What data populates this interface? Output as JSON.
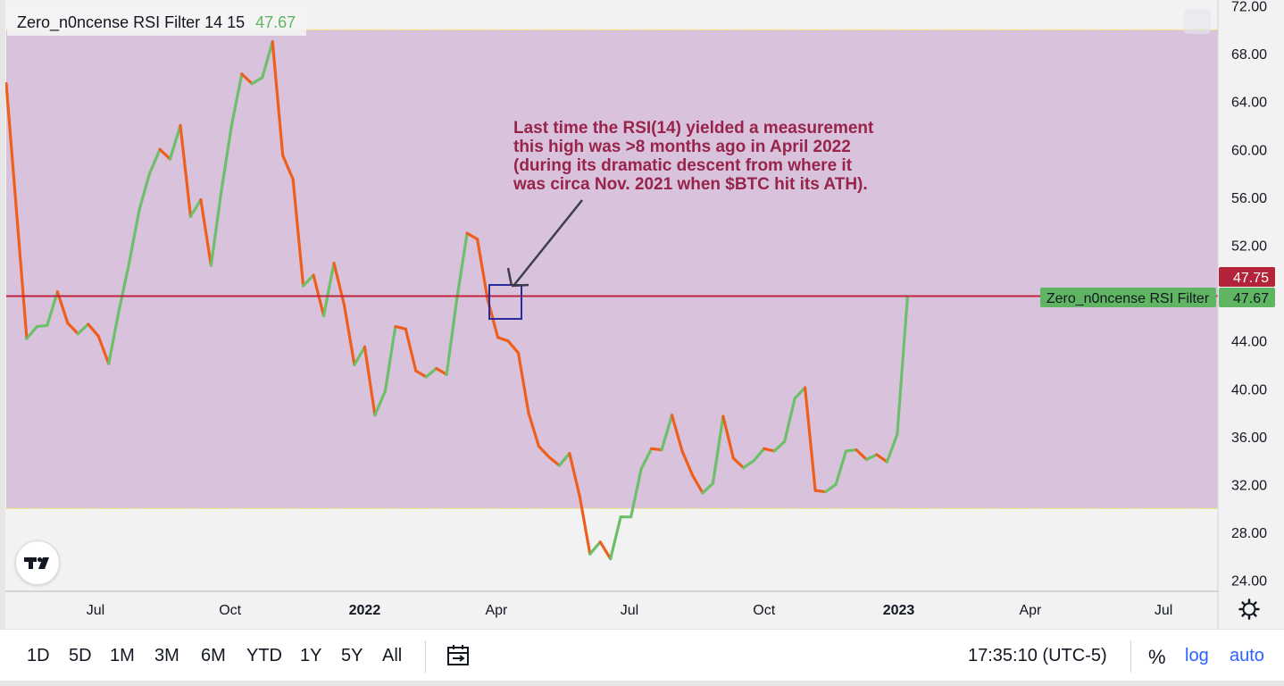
{
  "legend": {
    "name": "Zero_n0ncense RSI Filter 14 15",
    "value": "47.67"
  },
  "price_axis": {
    "ticks": [
      "72.00",
      "68.00",
      "64.00",
      "60.00",
      "56.00",
      "52.00",
      "48.00",
      "44.00",
      "40.00",
      "36.00",
      "32.00",
      "28.00",
      "24.00"
    ],
    "crosshair_label": "47.75",
    "last_value_label": "47.67",
    "series_tag": "Zero_n0ncense RSI Filter"
  },
  "time_axis": {
    "labels": [
      "Jul",
      "Oct",
      "2022",
      "Apr",
      "Jul",
      "Oct",
      "2023",
      "Apr",
      "Jul"
    ]
  },
  "annotation": {
    "lines": [
      "Last time the RSI(14) yielded a measurement",
      "this high was >8 months ago in April 2022",
      "(during its dramatic descent from where it",
      "was circa Nov. 2021 when $BTC hit its ATH)."
    ]
  },
  "toolbar": {
    "ranges": [
      "1D",
      "5D",
      "1M",
      "3M",
      "6M",
      "YTD",
      "1Y",
      "5Y",
      "All"
    ],
    "time": "17:35:10 (UTC-5)",
    "percent": "%",
    "log": "log",
    "auto": "auto"
  },
  "colors": {
    "band": "#d9c2dc",
    "up": "#6dbf6a",
    "down": "#ef5f1c",
    "level_line": "#c1243f",
    "annotation_text": "#98244c",
    "band_border": "#f2ea4a",
    "highlight_box": "#2a2b9e"
  },
  "icons": [
    "tradingview-logo-icon",
    "calendar-icon",
    "gear-icon"
  ],
  "chart_data": {
    "type": "line",
    "title": "Zero_n0ncense RSI Filter 14 15",
    "ylim": [
      24,
      72
    ],
    "band": [
      30,
      70
    ],
    "level_line": 47.75,
    "last_value": 47.67,
    "series": [
      {
        "name": "Zero_n0ncense RSI Filter",
        "x": [
          "2021-05-01",
          "2021-05-15",
          "2021-05-22",
          "2021-05-29",
          "2021-06-05",
          "2021-06-12",
          "2021-06-19",
          "2021-06-26",
          "2021-07-03",
          "2021-07-10",
          "2021-07-17",
          "2021-07-24",
          "2021-07-31",
          "2021-08-07",
          "2021-08-14",
          "2021-08-21",
          "2021-08-28",
          "2021-09-04",
          "2021-09-11",
          "2021-09-18",
          "2021-09-25",
          "2021-10-02",
          "2021-10-09",
          "2021-10-16",
          "2021-10-23",
          "2021-10-30",
          "2021-11-06",
          "2021-11-13",
          "2021-11-20",
          "2021-11-27",
          "2021-12-04",
          "2021-12-11",
          "2021-12-18",
          "2021-12-25",
          "2022-01-01",
          "2022-01-08",
          "2022-01-15",
          "2022-01-22",
          "2022-01-29",
          "2022-02-05",
          "2022-02-12",
          "2022-02-19",
          "2022-02-26",
          "2022-03-05",
          "2022-03-12",
          "2022-03-19",
          "2022-03-26",
          "2022-04-02",
          "2022-04-09",
          "2022-04-16",
          "2022-04-23",
          "2022-04-30",
          "2022-05-07",
          "2022-05-14",
          "2022-05-21",
          "2022-05-28",
          "2022-06-04",
          "2022-06-11",
          "2022-06-18",
          "2022-06-25",
          "2022-07-02",
          "2022-07-09",
          "2022-07-16",
          "2022-07-23",
          "2022-07-30",
          "2022-08-06",
          "2022-08-13",
          "2022-08-20",
          "2022-08-27",
          "2022-09-03",
          "2022-09-10",
          "2022-09-17",
          "2022-09-24",
          "2022-10-01",
          "2022-10-08",
          "2022-10-15",
          "2022-10-22",
          "2022-10-29",
          "2022-11-05",
          "2022-11-12",
          "2022-11-19",
          "2022-11-26",
          "2022-12-03",
          "2022-12-10",
          "2022-12-17",
          "2022-12-24",
          "2022-12-31",
          "2023-01-07"
        ],
        "values": [
          65.5,
          44.2,
          45.2,
          45.3,
          48.1,
          45.5,
          44.6,
          45.4,
          44.4,
          42.1,
          46.5,
          50.5,
          55.0,
          58.0,
          60.0,
          59.2,
          62.0,
          54.4,
          55.8,
          50.3,
          56.5,
          62.0,
          66.3,
          65.5,
          66.0,
          69.0,
          59.5,
          57.5,
          48.6,
          49.5,
          46.1,
          50.5,
          47.0,
          42.0,
          43.5,
          37.8,
          39.8,
          45.2,
          45.0,
          41.5,
          41.0,
          41.7,
          41.2,
          47.5,
          53.0,
          52.5,
          47.5,
          44.3,
          44.0,
          43.0,
          38.0,
          35.2,
          34.3,
          33.6,
          34.6,
          31.0,
          26.2,
          27.2,
          25.8,
          29.3,
          29.3,
          33.3,
          35.0,
          34.9,
          37.8,
          34.8,
          32.8,
          31.3,
          32.1,
          37.7,
          34.2,
          33.4,
          34.0,
          35.0,
          34.8,
          35.6,
          39.2,
          40.1,
          31.5,
          31.4,
          32.0,
          34.8,
          34.9,
          34.1,
          34.5,
          33.9,
          36.2,
          47.67
        ],
        "direction": [
          "",
          "dn",
          "up",
          "up",
          "up",
          "dn",
          "dn",
          "up",
          "dn",
          "dn",
          "up",
          "up",
          "up",
          "up",
          "up",
          "dn",
          "up",
          "dn",
          "up",
          "dn",
          "up",
          "up",
          "up",
          "dn",
          "up",
          "up",
          "dn",
          "dn",
          "dn",
          "up",
          "dn",
          "up",
          "dn",
          "dn",
          "up",
          "dn",
          "up",
          "up",
          "dn",
          "dn",
          "dn",
          "up",
          "dn",
          "up",
          "up",
          "dn",
          "dn",
          "dn",
          "dn",
          "dn",
          "dn",
          "dn",
          "dn",
          "dn",
          "up",
          "dn",
          "dn",
          "up",
          "dn",
          "up",
          "up",
          "up",
          "up",
          "dn",
          "up",
          "dn",
          "dn",
          "dn",
          "up",
          "up",
          "dn",
          "dn",
          "up",
          "up",
          "dn",
          "up",
          "up",
          "up",
          "dn",
          "dn",
          "up",
          "up",
          "up",
          "dn",
          "up",
          "dn",
          "up",
          "up"
        ]
      }
    ]
  }
}
